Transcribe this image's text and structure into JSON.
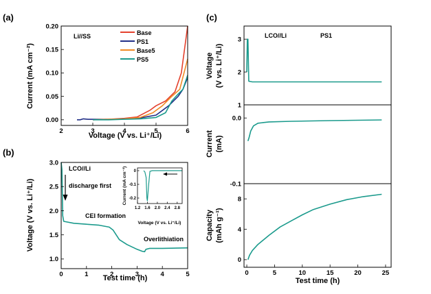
{
  "chart_data": [
    {
      "panel_label": "(a)",
      "type": "line",
      "annotation": "Li//SS",
      "xlabel": "Voltage (V vs. Li⁺/Li)",
      "ylabel": "Current (mA cm⁻²)",
      "xlim": [
        2,
        6
      ],
      "ylim": [
        -0.012,
        0.2
      ],
      "xticks": [
        2,
        3,
        4,
        5,
        6
      ],
      "yticks": [
        0.0,
        0.05,
        0.1,
        0.15,
        0.2
      ],
      "xtick_labels": [
        "2",
        "3",
        "4",
        "5",
        "6"
      ],
      "ytick_labels": [
        "0.00",
        "0.05",
        "0.10",
        "0.15",
        "0.20"
      ],
      "legend": [
        "Base",
        "PS1",
        "Base5",
        "PS5"
      ],
      "series": [
        {
          "name": "Base",
          "color": "#e4402c",
          "points": [
            [
              3.0,
              0.0
            ],
            [
              3.5,
              0.001
            ],
            [
              4.0,
              0.003
            ],
            [
              4.4,
              0.006
            ],
            [
              4.8,
              0.02
            ],
            [
              5.0,
              0.03
            ],
            [
              5.3,
              0.04
            ],
            [
              5.6,
              0.06
            ],
            [
              5.8,
              0.1
            ],
            [
              6.0,
              0.2
            ]
          ]
        },
        {
          "name": "PS1",
          "color": "#1f2d86",
          "points": [
            [
              2.5,
              0.0
            ],
            [
              2.6,
              0.0
            ],
            [
              2.7,
              0.002
            ],
            [
              2.85,
              0.001
            ],
            [
              3.0,
              0.001
            ],
            [
              3.5,
              0.001
            ],
            [
              4.0,
              0.002
            ],
            [
              4.5,
              0.004
            ],
            [
              5.0,
              0.01
            ],
            [
              5.4,
              0.03
            ],
            [
              5.7,
              0.05
            ],
            [
              5.85,
              0.065
            ],
            [
              6.0,
              0.09
            ]
          ]
        },
        {
          "name": "Base5",
          "color": "#f08a24",
          "points": [
            [
              3.0,
              0.0
            ],
            [
              3.5,
              0.001
            ],
            [
              4.0,
              0.002
            ],
            [
              4.5,
              0.005
            ],
            [
              4.9,
              0.015
            ],
            [
              5.2,
              0.03
            ],
            [
              5.5,
              0.05
            ],
            [
              5.75,
              0.065
            ],
            [
              6.0,
              0.13
            ]
          ]
        },
        {
          "name": "PS5",
          "color": "#1a9a8c",
          "points": [
            [
              3.0,
              0.0
            ],
            [
              3.5,
              0.0
            ],
            [
              4.0,
              0.001
            ],
            [
              4.5,
              0.002
            ],
            [
              5.0,
              0.005
            ],
            [
              5.3,
              0.015
            ],
            [
              5.5,
              0.04
            ],
            [
              5.7,
              0.055
            ],
            [
              5.85,
              0.065
            ],
            [
              6.0,
              0.095
            ]
          ]
        }
      ]
    },
    {
      "panel_label": "(b)",
      "type": "line",
      "xlabel": "Test time (h)",
      "ylabel": "Voltage (V vs. Li⁺/Li)",
      "xlim": [
        0,
        5
      ],
      "ylim": [
        0.8,
        3.0
      ],
      "xticks": [
        0,
        1,
        2,
        3,
        4,
        5
      ],
      "yticks": [
        1.0,
        1.5,
        2.0,
        2.5,
        3.0
      ],
      "xtick_labels": [
        "0",
        "1",
        "2",
        "3",
        "4",
        "5"
      ],
      "ytick_labels": [
        "1.0",
        "1.5",
        "2.0",
        "2.5",
        "3.0"
      ],
      "annotations": {
        "cell": "LCO//Li",
        "discharge": "discharge first",
        "cei": "CEI formation",
        "overlithiation": "Overlithiation"
      },
      "series": [
        {
          "name": "LCO//Li",
          "color": "#1a9a8c",
          "points": [
            [
              0.0,
              3.0
            ],
            [
              0.03,
              2.85
            ],
            [
              0.06,
              1.9
            ],
            [
              0.1,
              1.78
            ],
            [
              0.5,
              1.74
            ],
            [
              1.0,
              1.72
            ],
            [
              1.5,
              1.7
            ],
            [
              1.9,
              1.66
            ],
            [
              2.05,
              1.6
            ],
            [
              2.3,
              1.4
            ],
            [
              2.6,
              1.3
            ],
            [
              3.0,
              1.2
            ],
            [
              3.2,
              1.16
            ],
            [
              3.3,
              1.15
            ],
            [
              3.35,
              1.2
            ],
            [
              3.5,
              1.22
            ],
            [
              4.0,
              1.22
            ],
            [
              5.0,
              1.23
            ]
          ]
        }
      ],
      "inset": {
        "type": "line",
        "xlabel": "Voltage (V vs. Li⁺/Li)",
        "ylabel": "Current (mA cm⁻²)",
        "xlim": [
          1.2,
          3.0
        ],
        "ylim": [
          -0.24,
          0.02
        ],
        "xticks": [
          1.2,
          1.6,
          2.0,
          2.4,
          2.8
        ],
        "yticks": [
          0.0,
          -0.1,
          -0.2
        ],
        "xtick_labels": [
          "1.2",
          "1.6",
          "2.0",
          "2.4",
          "2.8"
        ],
        "ytick_labels": [
          "0",
          "-0.1",
          "-0.2"
        ],
        "arrow": "pointing left (scan direction)",
        "series": [
          {
            "name": "inset",
            "color": "#1a9a8c",
            "points": [
              [
                3.0,
                0.0
              ],
              [
                2.2,
                0.0
              ],
              [
                1.8,
                0.0
              ],
              [
                1.7,
                -0.005
              ],
              [
                1.65,
                -0.1
              ],
              [
                1.6,
                -0.22
              ],
              [
                1.58,
                -0.2
              ],
              [
                1.55,
                -0.05
              ],
              [
                1.5,
                -0.01
              ],
              [
                1.45,
                0.0
              ]
            ]
          }
        ]
      }
    },
    {
      "panel_label": "(c)",
      "type": "line",
      "shared_xlabel": "Test time (h)",
      "xlim": [
        -0.5,
        26
      ],
      "xticks": [
        0,
        5,
        10,
        15,
        20,
        25
      ],
      "xtick_labels": [
        "0",
        "5",
        "10",
        "15",
        "20",
        "25"
      ],
      "annotations": {
        "cell": "LCO//Li",
        "electrolyte": "PS1"
      },
      "subplots": [
        {
          "ylabel_line1": "Voltage",
          "ylabel_line2": "(V vs. Li⁺/Li)",
          "ylim": [
            1.0,
            3.4
          ],
          "yticks": [
            1,
            2,
            3
          ],
          "ytick_labels": [
            "1",
            "2",
            "3"
          ],
          "series": [
            {
              "name": "Voltage",
              "color": "#1a9a8c",
              "points": [
                [
                  0.0,
                  2.0
                ],
                [
                  0.1,
                  3.0
                ],
                [
                  0.2,
                  3.0
                ],
                [
                  0.35,
                  1.72
                ],
                [
                  1.0,
                  1.7
                ],
                [
                  10.0,
                  1.7
                ],
                [
                  24.3,
                  1.7
                ]
              ]
            }
          ]
        },
        {
          "ylabel_line1": "Current",
          "ylabel_line2": "(mA)",
          "ylim": [
            -0.1,
            0.02
          ],
          "yticks": [
            -0.1,
            0.0
          ],
          "ytick_labels": [
            "-0.1",
            "0.0"
          ],
          "series": [
            {
              "name": "Current",
              "color": "#1a9a8c",
              "points": [
                [
                  0.2,
                  -0.035
                ],
                [
                  0.4,
                  -0.03
                ],
                [
                  0.7,
                  -0.02
                ],
                [
                  1.2,
                  -0.012
                ],
                [
                  2.0,
                  -0.008
                ],
                [
                  4.0,
                  -0.006
                ],
                [
                  8.0,
                  -0.005
                ],
                [
                  15.0,
                  -0.004
                ],
                [
                  24.3,
                  -0.003
                ]
              ]
            }
          ]
        },
        {
          "ylabel_line1": "Capacity",
          "ylabel_line2": "(mAh g⁻¹)",
          "ylim": [
            -1.0,
            10.0
          ],
          "yticks": [
            0,
            4,
            8
          ],
          "ytick_labels": [
            "0",
            "4",
            "8"
          ],
          "series": [
            {
              "name": "Capacity",
              "color": "#1a9a8c",
              "points": [
                [
                  0.2,
                  0.0
                ],
                [
                  0.5,
                  0.6
                ],
                [
                  1.0,
                  1.2
                ],
                [
                  2.0,
                  2.0
                ],
                [
                  4.0,
                  3.2
                ],
                [
                  6.0,
                  4.3
                ],
                [
                  8.0,
                  5.1
                ],
                [
                  10.0,
                  5.9
                ],
                [
                  12.0,
                  6.6
                ],
                [
                  15.0,
                  7.3
                ],
                [
                  18.0,
                  7.9
                ],
                [
                  21.0,
                  8.3
                ],
                [
                  24.3,
                  8.6
                ]
              ]
            }
          ]
        }
      ]
    }
  ]
}
